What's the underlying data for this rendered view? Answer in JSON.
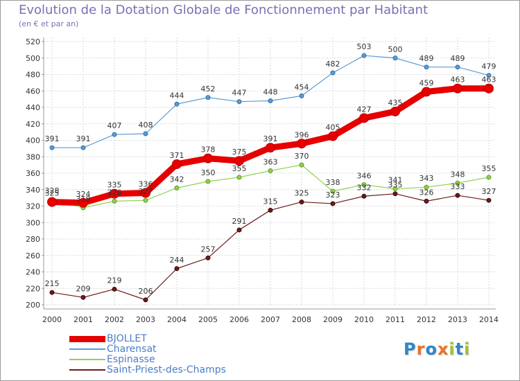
{
  "title": "Evolution de la Dotation Globale de Fonctionnement par Habitant",
  "subtitle": "(en € et par an)",
  "logo": {
    "letters": [
      "P",
      "r",
      "o",
      "x",
      "i",
      "t",
      "i"
    ],
    "colors": [
      "#2e86c8",
      "#e8742c",
      "#2e86c8",
      "#e8742c",
      "#9ec42f",
      "#2e86c8",
      "#9ec42f"
    ]
  },
  "chart_data": {
    "type": "line",
    "title": "Evolution de la Dotation Globale de Fonctionnement par Habitant",
    "subtitle": "(en € et par an)",
    "x": [
      "2000",
      "2001",
      "2002",
      "2003",
      "2004",
      "2005",
      "2006",
      "2007",
      "2008",
      "2009",
      "2010",
      "2011",
      "2012",
      "2013",
      "2014"
    ],
    "y_ticks": [
      200,
      220,
      240,
      260,
      280,
      300,
      320,
      340,
      360,
      380,
      400,
      420,
      440,
      460,
      480,
      500,
      520
    ],
    "ylim": [
      200,
      520
    ],
    "grid": true,
    "legend_position": "bottom-left",
    "series": [
      {
        "name": "Charensat",
        "color": "#5b9bd5",
        "values": [
          391,
          391,
          407,
          408,
          444,
          452,
          447,
          448,
          454,
          482,
          503,
          500,
          489,
          489,
          479
        ]
      },
      {
        "name": "Espinasse",
        "color": "#92d050",
        "values": [
          328,
          318,
          326,
          327,
          342,
          350,
          355,
          363,
          370,
          338,
          346,
          341,
          343,
          348,
          355
        ]
      },
      {
        "name": "Saint-Priest-des-Champs",
        "color": "#6b1a1a",
        "values": [
          215,
          209,
          219,
          206,
          244,
          257,
          291,
          315,
          325,
          323,
          332,
          335,
          326,
          333,
          327
        ]
      },
      {
        "name": "BJOLLET",
        "color": "#e60000",
        "values": [
          325,
          324,
          335,
          336,
          371,
          378,
          375,
          391,
          396,
          405,
          427,
          435,
          459,
          463,
          463
        ]
      }
    ]
  }
}
